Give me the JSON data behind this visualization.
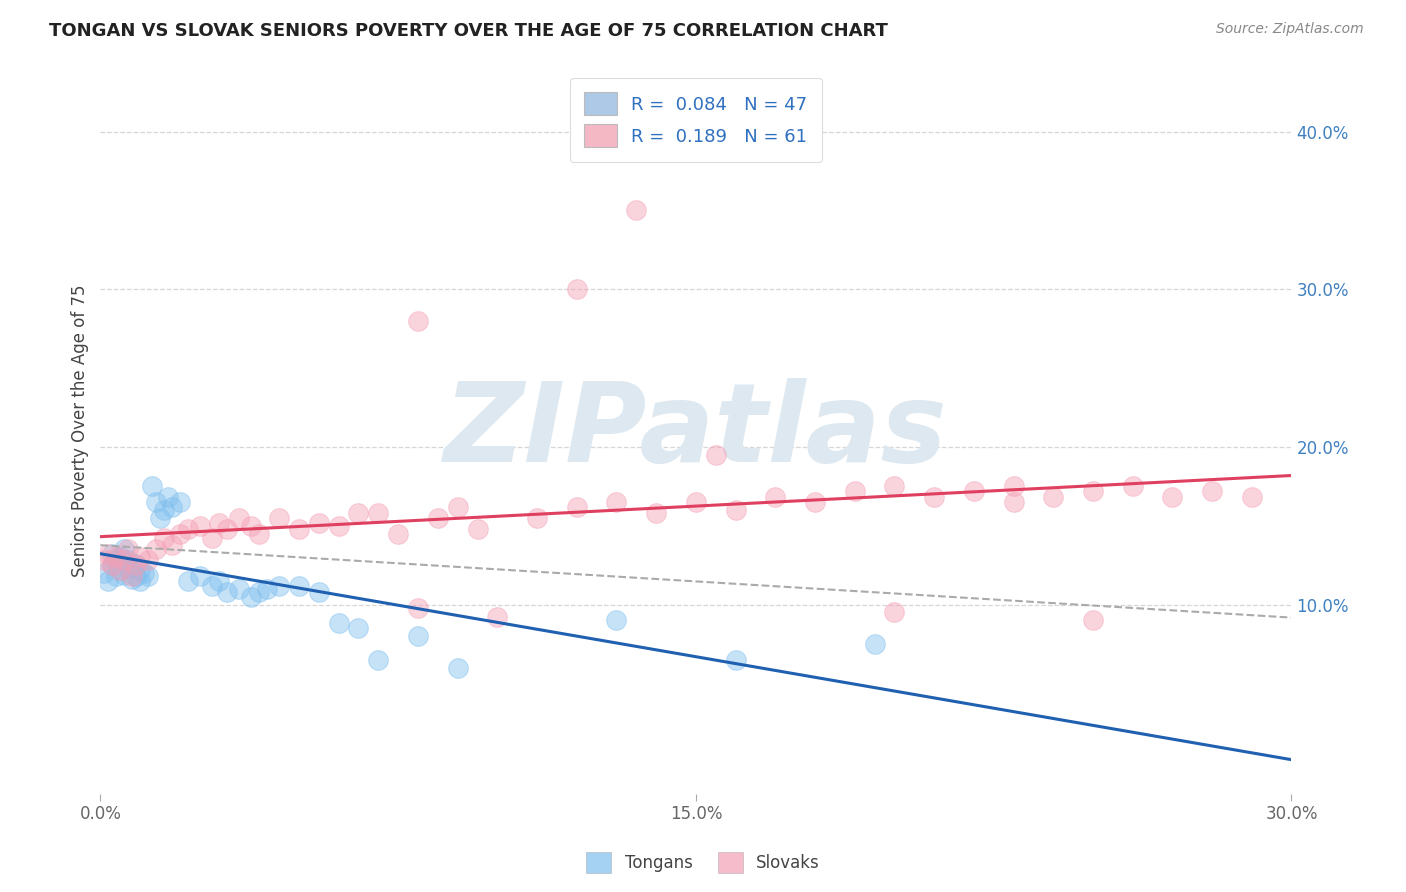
{
  "title": "TONGAN VS SLOVAK SENIORS POVERTY OVER THE AGE OF 75 CORRELATION CHART",
  "source": "Source: ZipAtlas.com",
  "ylabel": "Seniors Poverty Over the Age of 75",
  "xlim": [
    0.0,
    0.3
  ],
  "ylim": [
    -0.02,
    0.44
  ],
  "xticks": [
    0.0,
    0.15,
    0.3
  ],
  "xticklabels": [
    "0.0%",
    "15.0%",
    "30.0%"
  ],
  "yticks_right": [
    0.1,
    0.2,
    0.3,
    0.4
  ],
  "yticklabels_right": [
    "10.0%",
    "20.0%",
    "30.0%",
    "40.0%"
  ],
  "tongans_color": "#7fbfef",
  "slovaks_color": "#f4a0b5",
  "trend_tongan_color": "#2060b0",
  "trend_slovak_color": "#e04060",
  "dashed_line_color": "#aaaaaa",
  "watermark": "ZIPatlas",
  "watermark_color": "#dde8f0",
  "background_color": "#ffffff",
  "grid_color": "#cccccc",
  "legend_blue_color": "#aec8e8",
  "legend_pink_color": "#f4b8c5",
  "legend_text_color": "#3070c0",
  "r_tongan": 0.084,
  "n_tongan": 47,
  "r_slovak": 0.189,
  "n_slovak": 61,
  "tongans_x": [
    0.001,
    0.002,
    0.003,
    0.003,
    0.004,
    0.004,
    0.005,
    0.005,
    0.006,
    0.006,
    0.007,
    0.007,
    0.008,
    0.008,
    0.009,
    0.009,
    0.01,
    0.01,
    0.011,
    0.012,
    0.013,
    0.014,
    0.015,
    0.016,
    0.017,
    0.018,
    0.02,
    0.022,
    0.025,
    0.028,
    0.03,
    0.032,
    0.035,
    0.038,
    0.04,
    0.042,
    0.045,
    0.05,
    0.055,
    0.06,
    0.065,
    0.07,
    0.08,
    0.09,
    0.13,
    0.16,
    0.195
  ],
  "tongans_y": [
    0.12,
    0.115,
    0.132,
    0.125,
    0.118,
    0.128,
    0.122,
    0.13,
    0.119,
    0.135,
    0.123,
    0.128,
    0.116,
    0.124,
    0.118,
    0.126,
    0.115,
    0.122,
    0.12,
    0.118,
    0.175,
    0.165,
    0.155,
    0.16,
    0.168,
    0.162,
    0.165,
    0.115,
    0.118,
    0.112,
    0.115,
    0.108,
    0.11,
    0.105,
    0.108,
    0.11,
    0.112,
    0.112,
    0.108,
    0.088,
    0.085,
    0.065,
    0.08,
    0.06,
    0.09,
    0.065,
    0.075
  ],
  "slovaks_x": [
    0.001,
    0.002,
    0.003,
    0.004,
    0.005,
    0.006,
    0.007,
    0.008,
    0.009,
    0.01,
    0.012,
    0.014,
    0.016,
    0.018,
    0.02,
    0.022,
    0.025,
    0.028,
    0.03,
    0.032,
    0.035,
    0.038,
    0.04,
    0.045,
    0.05,
    0.055,
    0.06,
    0.065,
    0.07,
    0.075,
    0.08,
    0.085,
    0.09,
    0.095,
    0.1,
    0.11,
    0.12,
    0.13,
    0.14,
    0.15,
    0.16,
    0.17,
    0.18,
    0.19,
    0.2,
    0.21,
    0.22,
    0.23,
    0.24,
    0.25,
    0.26,
    0.27,
    0.28,
    0.29,
    0.08,
    0.12,
    0.135,
    0.155,
    0.2,
    0.23,
    0.25
  ],
  "slovaks_y": [
    0.128,
    0.132,
    0.125,
    0.13,
    0.122,
    0.128,
    0.135,
    0.118,
    0.125,
    0.13,
    0.128,
    0.135,
    0.142,
    0.138,
    0.145,
    0.148,
    0.15,
    0.142,
    0.152,
    0.148,
    0.155,
    0.15,
    0.145,
    0.155,
    0.148,
    0.152,
    0.15,
    0.158,
    0.158,
    0.145,
    0.098,
    0.155,
    0.162,
    0.148,
    0.092,
    0.155,
    0.162,
    0.165,
    0.158,
    0.165,
    0.16,
    0.168,
    0.165,
    0.172,
    0.175,
    0.168,
    0.172,
    0.175,
    0.168,
    0.172,
    0.175,
    0.168,
    0.172,
    0.168,
    0.28,
    0.3,
    0.35,
    0.195,
    0.095,
    0.165,
    0.09
  ]
}
